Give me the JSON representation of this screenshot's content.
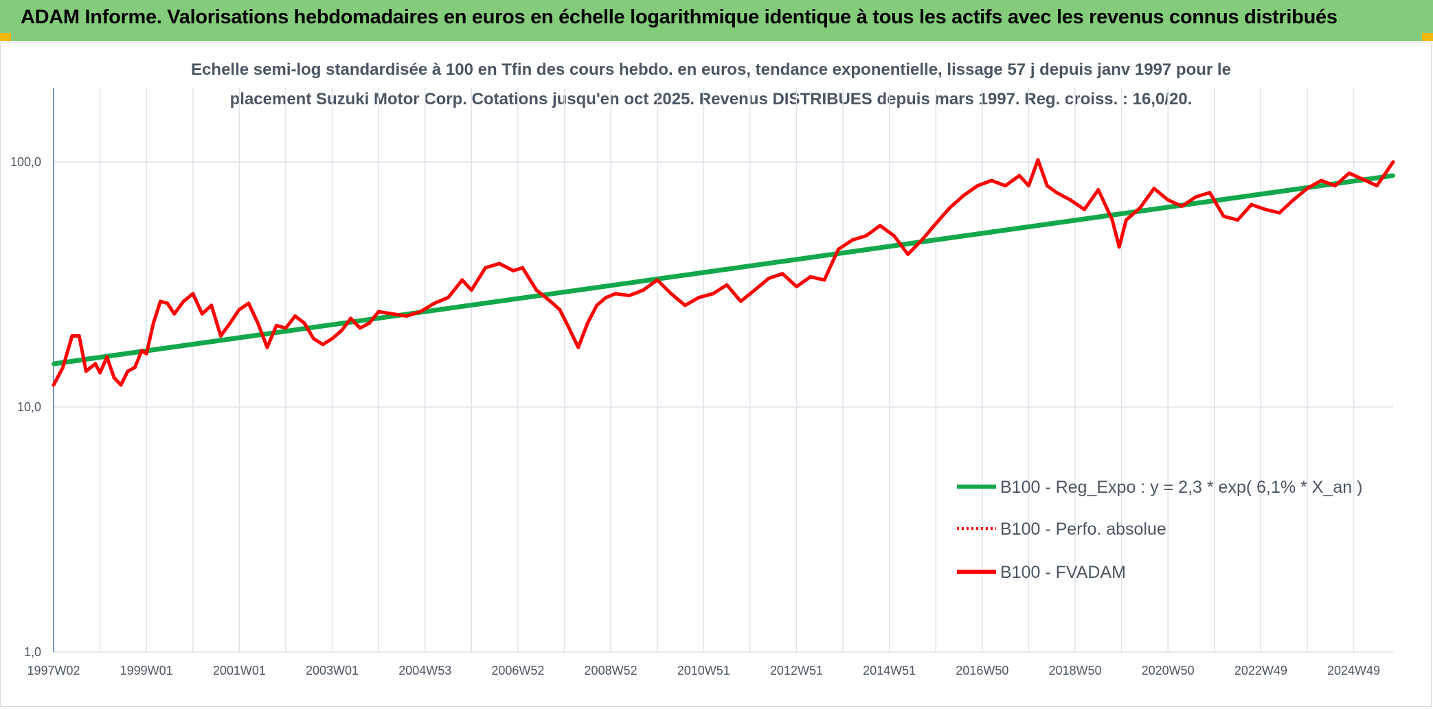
{
  "banner": {
    "title": "ADAM Informe. Valorisations hebdomadaires en euros en échelle logarithmique identique à tous les actifs avec les revenus connus distribués"
  },
  "colors": {
    "banner_bg": "#84cc7b",
    "corner": "#f3b800",
    "series_fvadam": "#ff0000",
    "series_reg": "#12a84b",
    "grid": "#dde3ea",
    "axis": "#4a72c4"
  },
  "chart_data": {
    "type": "line",
    "title_line1": "Echelle semi-log standardisée à 100 en Tfin des cours hebdo. en euros, tendance exponentielle, lissage 57 j depuis janv 1997 pour le",
    "title_line2": "placement Suzuki Motor Corp. Cotations jusqu'en oct 2025. Revenus DISTRIBUES depuis mars 1997. Reg. croiss. : 16,0/20.",
    "y_scale": "log",
    "ylim": [
      1,
      200
    ],
    "y_ticks": [
      {
        "value": 100,
        "label": "100,0"
      },
      {
        "value": 10,
        "label": "10,0"
      },
      {
        "value": 1,
        "label": "1,0"
      }
    ],
    "xlim": [
      1997.0,
      2025.85
    ],
    "x_ticks": [
      {
        "value": 1997.0,
        "label": "1997W02"
      },
      {
        "value": 1999.0,
        "label": "1999W01"
      },
      {
        "value": 2001.0,
        "label": "2001W01"
      },
      {
        "value": 2003.0,
        "label": "2003W01"
      },
      {
        "value": 2005.0,
        "label": "2004W53"
      },
      {
        "value": 2007.0,
        "label": "2006W52"
      },
      {
        "value": 2009.0,
        "label": "2008W52"
      },
      {
        "value": 2011.0,
        "label": "2010W51"
      },
      {
        "value": 2013.0,
        "label": "2012W51"
      },
      {
        "value": 2015.0,
        "label": "2014W51"
      },
      {
        "value": 2017.0,
        "label": "2016W50"
      },
      {
        "value": 2019.0,
        "label": "2018W50"
      },
      {
        "value": 2021.0,
        "label": "2020W50"
      },
      {
        "value": 2023.0,
        "label": "2022W49"
      },
      {
        "value": 2025.0,
        "label": "2024W49"
      }
    ],
    "legend": [
      {
        "name": "B100 - Reg_Expo : y = 2,3 * exp( 6,1% *  X_an )",
        "style": "solid",
        "color": "#12a84b"
      },
      {
        "name": "B100 - Perfo. absolue",
        "style": "dotted",
        "color": "#ff0000"
      },
      {
        "name": "B100 - FVADAM",
        "style": "solid",
        "color": "#ff0000"
      }
    ],
    "series": [
      {
        "name": "B100 - Reg_Expo",
        "x": [
          1997.0,
          2025.85
        ],
        "values": [
          15.0,
          88.0
        ]
      },
      {
        "name": "B100 - FVADAM",
        "x": [
          1997.0,
          1997.2,
          1997.4,
          1997.55,
          1997.7,
          1997.9,
          1998.0,
          1998.15,
          1998.3,
          1998.45,
          1998.6,
          1998.75,
          1998.9,
          1999.0,
          1999.15,
          1999.3,
          1999.45,
          1999.6,
          1999.8,
          2000.0,
          2000.2,
          2000.4,
          2000.6,
          2000.8,
          2001.0,
          2001.2,
          2001.4,
          2001.6,
          2001.8,
          2002.0,
          2002.2,
          2002.4,
          2002.6,
          2002.8,
          2003.0,
          2003.2,
          2003.4,
          2003.6,
          2003.8,
          2004.0,
          2004.3,
          2004.6,
          2004.9,
          2005.2,
          2005.5,
          2005.8,
          2006.0,
          2006.3,
          2006.6,
          2006.9,
          2007.1,
          2007.4,
          2007.7,
          2007.9,
          2008.1,
          2008.3,
          2008.5,
          2008.7,
          2008.9,
          2009.1,
          2009.4,
          2009.7,
          2010.0,
          2010.3,
          2010.6,
          2010.9,
          2011.2,
          2011.5,
          2011.8,
          2012.1,
          2012.4,
          2012.7,
          2013.0,
          2013.3,
          2013.6,
          2013.9,
          2014.2,
          2014.5,
          2014.8,
          2015.1,
          2015.4,
          2015.7,
          2016.0,
          2016.3,
          2016.6,
          2016.9,
          2017.2,
          2017.5,
          2017.8,
          2018.0,
          2018.2,
          2018.4,
          2018.6,
          2018.9,
          2019.2,
          2019.5,
          2019.8,
          2019.95,
          2020.1,
          2020.4,
          2020.7,
          2021.0,
          2021.3,
          2021.6,
          2021.9,
          2022.2,
          2022.5,
          2022.8,
          2023.1,
          2023.4,
          2023.7,
          2024.0,
          2024.3,
          2024.6,
          2024.9,
          2025.2,
          2025.5,
          2025.85
        ],
        "values": [
          12.3,
          14.5,
          19.5,
          19.5,
          14.0,
          15.0,
          13.8,
          16.0,
          13.2,
          12.3,
          14.0,
          14.5,
          17.0,
          16.5,
          22.0,
          27.0,
          26.5,
          24.0,
          27.0,
          29.0,
          24.0,
          26.0,
          19.5,
          22.0,
          25.0,
          26.5,
          22.0,
          17.5,
          21.5,
          21.0,
          23.5,
          22.0,
          19.0,
          18.0,
          19.0,
          20.5,
          23.0,
          21.0,
          22.0,
          24.5,
          24.0,
          23.5,
          24.5,
          26.5,
          28.0,
          33.0,
          30.0,
          37.0,
          38.5,
          36.0,
          37.0,
          30.0,
          27.0,
          25.0,
          21.0,
          17.5,
          22.0,
          26.0,
          28.0,
          29.0,
          28.5,
          30.0,
          33.0,
          29.0,
          26.0,
          28.0,
          29.0,
          31.5,
          27.0,
          30.0,
          33.5,
          35.0,
          31.0,
          34.0,
          33.0,
          44.0,
          48.0,
          50.0,
          55.0,
          50.0,
          42.0,
          48.0,
          56.0,
          65.0,
          73.0,
          80.0,
          84.0,
          80.0,
          88.0,
          80.0,
          102.0,
          80.0,
          75.0,
          70.0,
          64.0,
          77.0,
          58.0,
          45.0,
          58.0,
          65.0,
          78.0,
          70.0,
          66.0,
          72.0,
          75.0,
          60.0,
          58.0,
          67.0,
          64.0,
          62.0,
          70.0,
          78.0,
          84.0,
          80.0,
          90.0,
          85.0,
          80.0,
          100.0
        ]
      }
    ]
  }
}
